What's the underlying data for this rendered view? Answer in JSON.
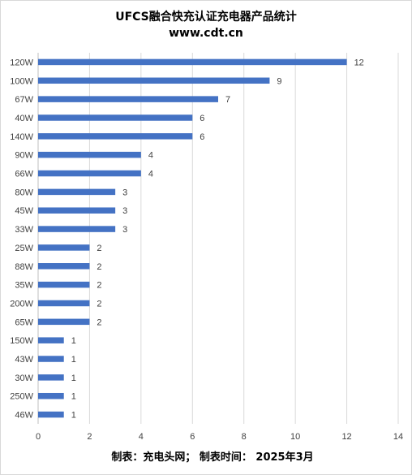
{
  "chart_data": {
    "type": "bar",
    "orientation": "horizontal",
    "title": "UFCS融合快充认证充电器产品统计",
    "subtitle": "www.cdt.cn",
    "categories": [
      "120W",
      "100W",
      "67W",
      "40W",
      "140W",
      "90W",
      "66W",
      "80W",
      "45W",
      "33W",
      "25W",
      "88W",
      "35W",
      "200W",
      "65W",
      "150W",
      "43W",
      "30W",
      "250W",
      "46W"
    ],
    "values": [
      12,
      9,
      7,
      6,
      6,
      4,
      4,
      3,
      3,
      3,
      2,
      2,
      2,
      2,
      2,
      1,
      1,
      1,
      1,
      1
    ],
    "xlim": [
      0,
      14
    ],
    "xticks": [
      0,
      2,
      4,
      6,
      8,
      10,
      12,
      14
    ],
    "grid": true,
    "bar_color": "#4472c4",
    "footer": "制表：充电头网；  制表时间：  2025年3月"
  }
}
